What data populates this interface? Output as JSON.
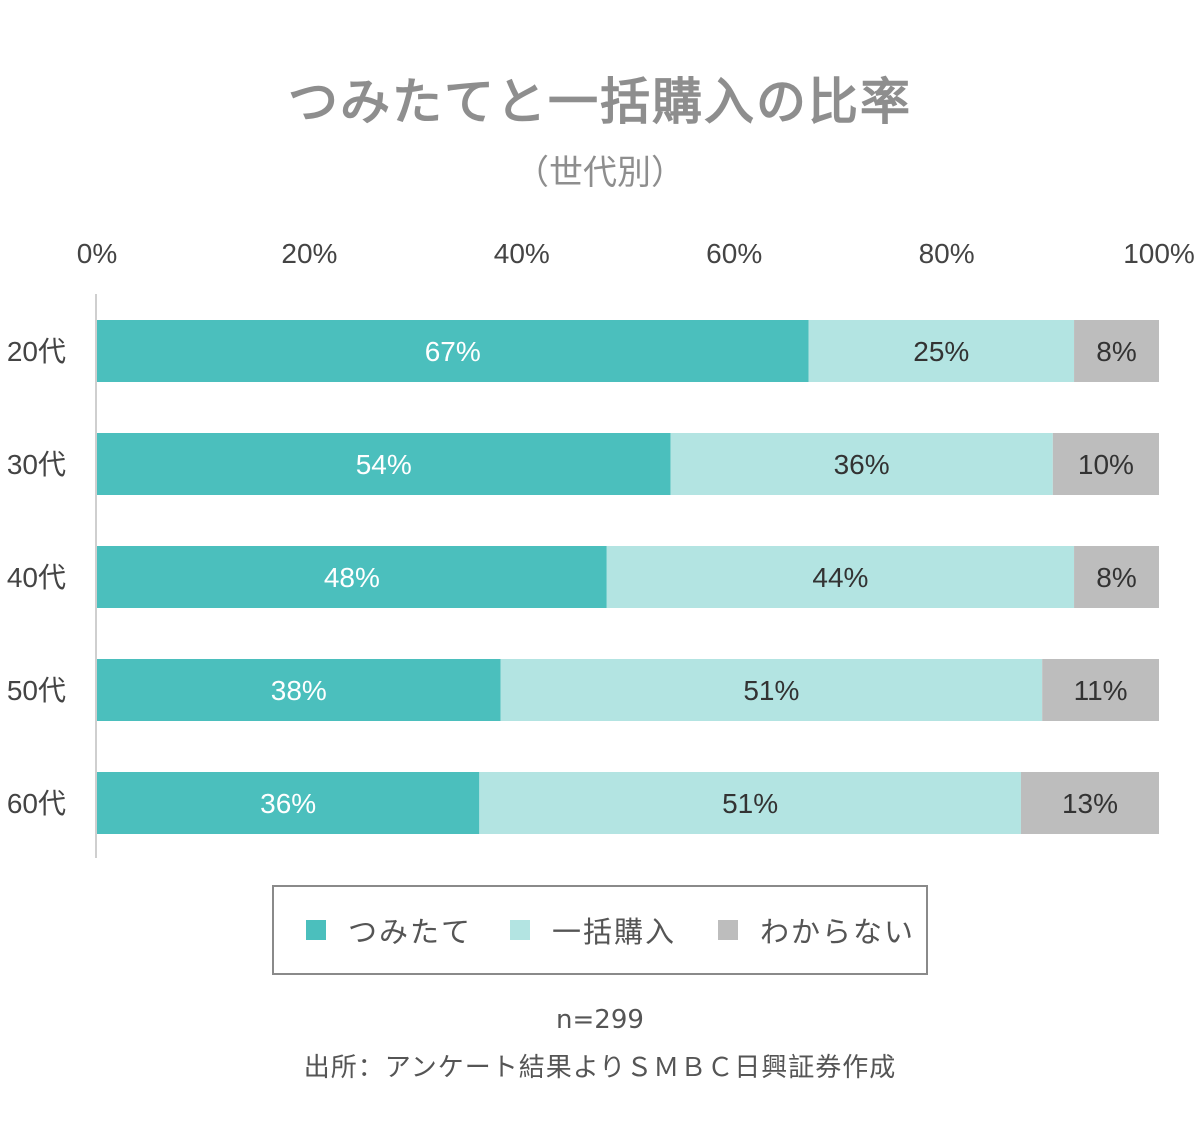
{
  "chart_data": {
    "type": "bar",
    "orientation": "horizontal",
    "stacked": true,
    "title": "つみたてと一括購入の比率",
    "subtitle": "（世代別）",
    "categories": [
      "20代",
      "30代",
      "40代",
      "50代",
      "60代"
    ],
    "series": [
      {
        "name": "つみたて",
        "values": [
          67,
          54,
          48,
          38,
          36
        ],
        "color": "#4bbfbd",
        "label_color": "#ffffff"
      },
      {
        "name": "一括購入",
        "values": [
          25,
          36,
          44,
          51,
          51
        ],
        "color": "#b3e4e2",
        "label_color": "#333333"
      },
      {
        "name": "わからない",
        "values": [
          8,
          10,
          8,
          11,
          13
        ],
        "color": "#bdbdbd",
        "label_color": "#333333"
      }
    ],
    "value_suffix": "%",
    "xlim": [
      0,
      100
    ],
    "xticks": [
      0,
      20,
      40,
      60,
      80,
      100
    ],
    "xtick_labels": [
      "0%",
      "20%",
      "40%",
      "60%",
      "80%",
      "100%"
    ],
    "xaxis_position": "top",
    "legend_position": "bottom",
    "grid": false
  },
  "notes": {
    "sample": "n=299",
    "source": "出所：アンケート結果よりＳＭＢＣ日興証券作成"
  }
}
